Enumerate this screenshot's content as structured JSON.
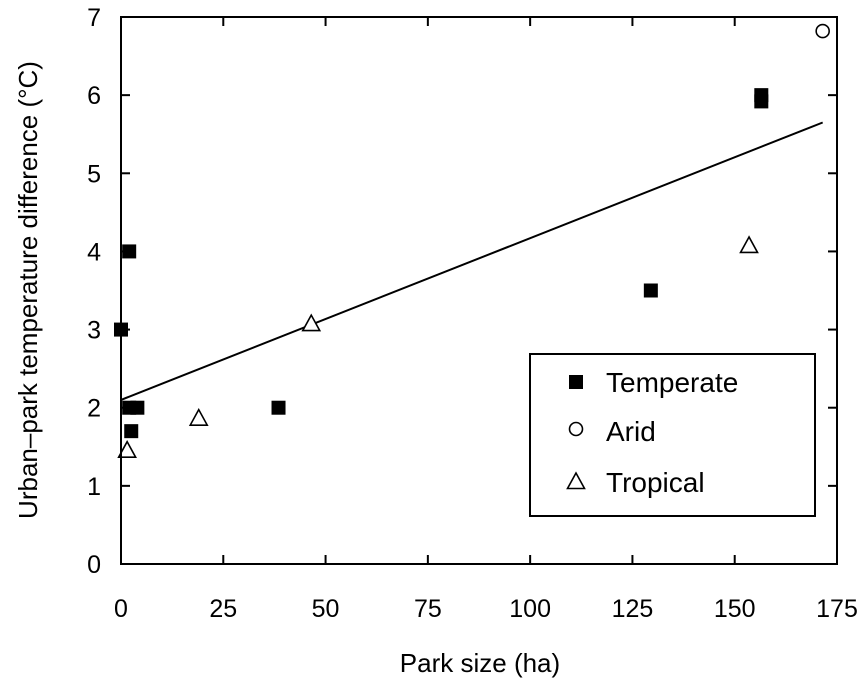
{
  "chart_data": {
    "type": "scatter",
    "xlabel": "Park size (ha)",
    "ylabel": "Urban–park temperature difference (°C)",
    "xlim": [
      0,
      175
    ],
    "ylim": [
      0,
      7
    ],
    "x_ticks": [
      "0",
      "25",
      "50",
      "75",
      "100",
      "125",
      "150",
      "175"
    ],
    "y_ticks": [
      "0",
      "1",
      "2",
      "3",
      "4",
      "5",
      "6",
      "7"
    ],
    "grid": false,
    "legend_position": "bottom-right",
    "series": [
      {
        "name": "Temperate",
        "marker": "filled-square",
        "points": [
          [
            0,
            3.0
          ],
          [
            2,
            4.0
          ],
          [
            2,
            2.0
          ],
          [
            4,
            2.0
          ],
          [
            2.5,
            1.7
          ],
          [
            38.5,
            2.0
          ],
          [
            129.5,
            3.5
          ],
          [
            156.5,
            6.0
          ],
          [
            156.5,
            5.92
          ]
        ]
      },
      {
        "name": "Arid",
        "marker": "open-circle",
        "points": [
          [
            171.5,
            6.82
          ]
        ]
      },
      {
        "name": "Tropical",
        "marker": "open-triangle",
        "points": [
          [
            1.5,
            1.45
          ],
          [
            19,
            1.86
          ],
          [
            46.5,
            3.07
          ],
          [
            153.5,
            4.07
          ]
        ]
      }
    ],
    "trendline": {
      "x": [
        0,
        171.5
      ],
      "y": [
        2.1,
        5.65
      ]
    }
  }
}
